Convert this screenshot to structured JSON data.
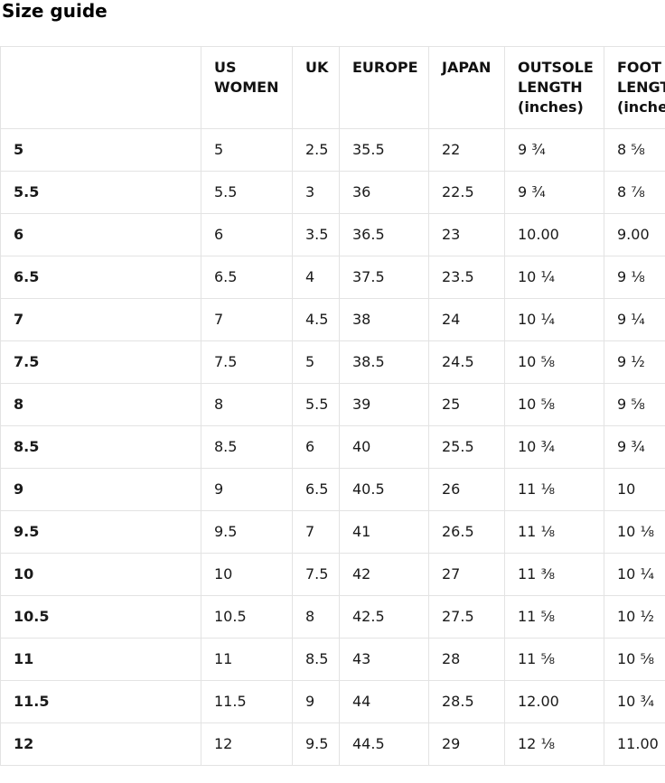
{
  "page": {
    "title": "Size guide"
  },
  "colors": {
    "background": "#ffffff",
    "border": "#e3e3e3",
    "text": "#1a1a1a",
    "title": "#000000"
  },
  "table": {
    "columns": [
      "",
      "US WOMEN",
      "UK",
      "EUROPE",
      "JAPAN",
      "OUTSOLE LENGTH (inches)",
      "FOOT LENGTH (inches)"
    ],
    "rows": [
      [
        "5",
        "5",
        "2.5",
        "35.5",
        "22",
        "9 ¾",
        "8 ⅝"
      ],
      [
        "5.5",
        "5.5",
        "3",
        "36",
        "22.5",
        "9 ¾",
        "8 ⅞"
      ],
      [
        "6",
        "6",
        "3.5",
        "36.5",
        "23",
        "10.00",
        "9.00"
      ],
      [
        "6.5",
        "6.5",
        "4",
        "37.5",
        "23.5",
        "10 ¼",
        "9 ⅛"
      ],
      [
        "7",
        "7",
        "4.5",
        "38",
        "24",
        "10 ¼",
        "9 ¼"
      ],
      [
        "7.5",
        "7.5",
        "5",
        "38.5",
        "24.5",
        "10 ⅝",
        "9 ½"
      ],
      [
        "8",
        "8",
        "5.5",
        "39",
        "25",
        "10 ⅝",
        "9 ⅝"
      ],
      [
        "8.5",
        "8.5",
        "6",
        "40",
        "25.5",
        "10 ¾",
        "9 ¾"
      ],
      [
        "9",
        "9",
        "6.5",
        "40.5",
        "26",
        "11 ⅛",
        "10"
      ],
      [
        "9.5",
        "9.5",
        "7",
        "41",
        "26.5",
        "11 ⅛",
        "10 ⅛"
      ],
      [
        "10",
        "10",
        "7.5",
        "42",
        "27",
        "11 ⅜",
        "10 ¼"
      ],
      [
        "10.5",
        "10.5",
        "8",
        "42.5",
        "27.5",
        "11 ⅝",
        "10 ½"
      ],
      [
        "11",
        "11",
        "8.5",
        "43",
        "28",
        "11 ⅝",
        "10 ⅝"
      ],
      [
        "11.5",
        "11.5",
        "9",
        "44",
        "28.5",
        "12.00",
        "10 ¾"
      ],
      [
        "12",
        "12",
        "9.5",
        "44.5",
        "29",
        "12 ⅛",
        "11.00"
      ]
    ]
  }
}
